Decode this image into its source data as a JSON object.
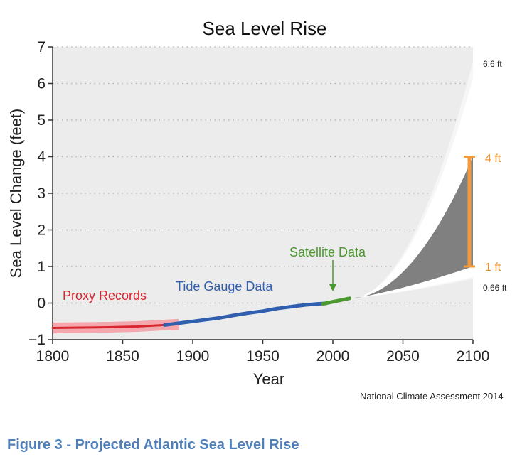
{
  "chart_data": {
    "type": "line",
    "title": "Sea Level Rise",
    "xlabel": "Year",
    "ylabel": "Sea Level Change (feet)",
    "xlim": [
      1800,
      2100
    ],
    "ylim": [
      -1,
      7
    ],
    "x_ticks": [
      "1800",
      "1850",
      "1900",
      "1950",
      "2000",
      "2050",
      "2100"
    ],
    "y_ticks": [
      "−1",
      "0",
      "1",
      "2",
      "3",
      "4",
      "5",
      "6",
      "7"
    ],
    "grid": "dotted horizontal",
    "series": [
      {
        "name": "Proxy Records",
        "color": "#d9262e",
        "band_color": "#f4a7ad",
        "x": [
          1800,
          1820,
          1840,
          1860,
          1880,
          1890
        ],
        "y": [
          -0.68,
          -0.67,
          -0.66,
          -0.64,
          -0.6,
          -0.58
        ]
      },
      {
        "name": "Tide Gauge Data",
        "color": "#2f5fae",
        "x": [
          1880,
          1890,
          1900,
          1910,
          1920,
          1930,
          1940,
          1950,
          1960,
          1970,
          1980,
          1990,
          1995
        ],
        "y": [
          -0.6,
          -0.55,
          -0.5,
          -0.45,
          -0.4,
          -0.33,
          -0.27,
          -0.22,
          -0.15,
          -0.1,
          -0.05,
          -0.02,
          -0.01
        ]
      },
      {
        "name": "Satellite Data",
        "color": "#4a9a2e",
        "x": [
          1993,
          1998,
          2003,
          2008,
          2012
        ],
        "y": [
          -0.02,
          0.02,
          0.06,
          0.1,
          0.13
        ]
      }
    ],
    "projection": {
      "start_year": 2012,
      "end_year": 2100,
      "start_value": 0.13,
      "outer_high": 6.6,
      "outer_low": 0.66,
      "likely_high": 4,
      "likely_low": 1
    },
    "annotations": {
      "high_label": "6.6 ft",
      "low_label": "0.66 ft",
      "range_high_label": "4 ft",
      "range_low_label": "1 ft"
    },
    "colors": {
      "plot_background": "#ececec",
      "outer_envelope": "#ffffff",
      "likely_range": "#808080",
      "range_bracket": "#f39a3a",
      "arrow": "#4a9a2e"
    },
    "source": "National Climate Assessment  2014"
  },
  "caption": "Figure 3 - Projected Atlantic Sea Level Rise"
}
